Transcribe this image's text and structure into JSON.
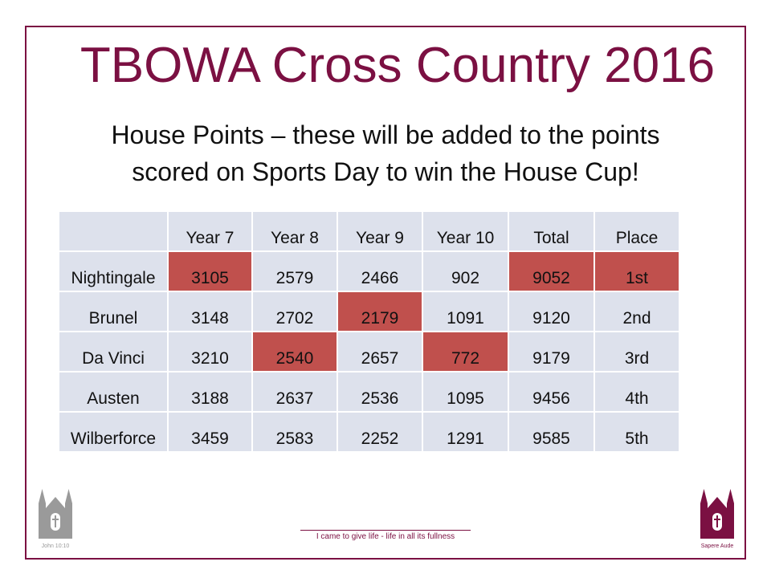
{
  "slide": {
    "title": "TBOWA Cross Country 2016",
    "subtitle_line1": "House Points – these will be added to the points",
    "subtitle_line2": "scored on Sports Day to win the House Cup!"
  },
  "table": {
    "headers": [
      "",
      "Year 7",
      "Year 8",
      "Year 9",
      "Year 10",
      "Total",
      "Place"
    ],
    "rows": [
      {
        "cells": [
          "Nightingale",
          "3105",
          "2579",
          "2466",
          "902",
          "9052",
          "1st"
        ],
        "highlight": [
          1,
          5,
          6
        ]
      },
      {
        "cells": [
          "Brunel",
          "3148",
          "2702",
          "2179",
          "1091",
          "9120",
          "2nd"
        ],
        "highlight": [
          3
        ]
      },
      {
        "cells": [
          "Da Vinci",
          "3210",
          "2540",
          "2657",
          "772",
          "9179",
          "3rd"
        ],
        "highlight": [
          2,
          4
        ]
      },
      {
        "cells": [
          "Austen",
          "3188",
          "2637",
          "2536",
          "1095",
          "9456",
          "4th"
        ],
        "highlight": []
      },
      {
        "cells": [
          "Wilberforce",
          "3459",
          "2583",
          "2252",
          "1291",
          "9585",
          "5th"
        ],
        "highlight": []
      }
    ]
  },
  "footer": {
    "left_caption": "John 10:10",
    "motto": "I came to give life - life in all its fullness",
    "right_caption": "Sapere Aude"
  },
  "colors": {
    "accent": "#7b1042",
    "cell_bg": "#dde1ec",
    "highlight": "#c0504d"
  }
}
